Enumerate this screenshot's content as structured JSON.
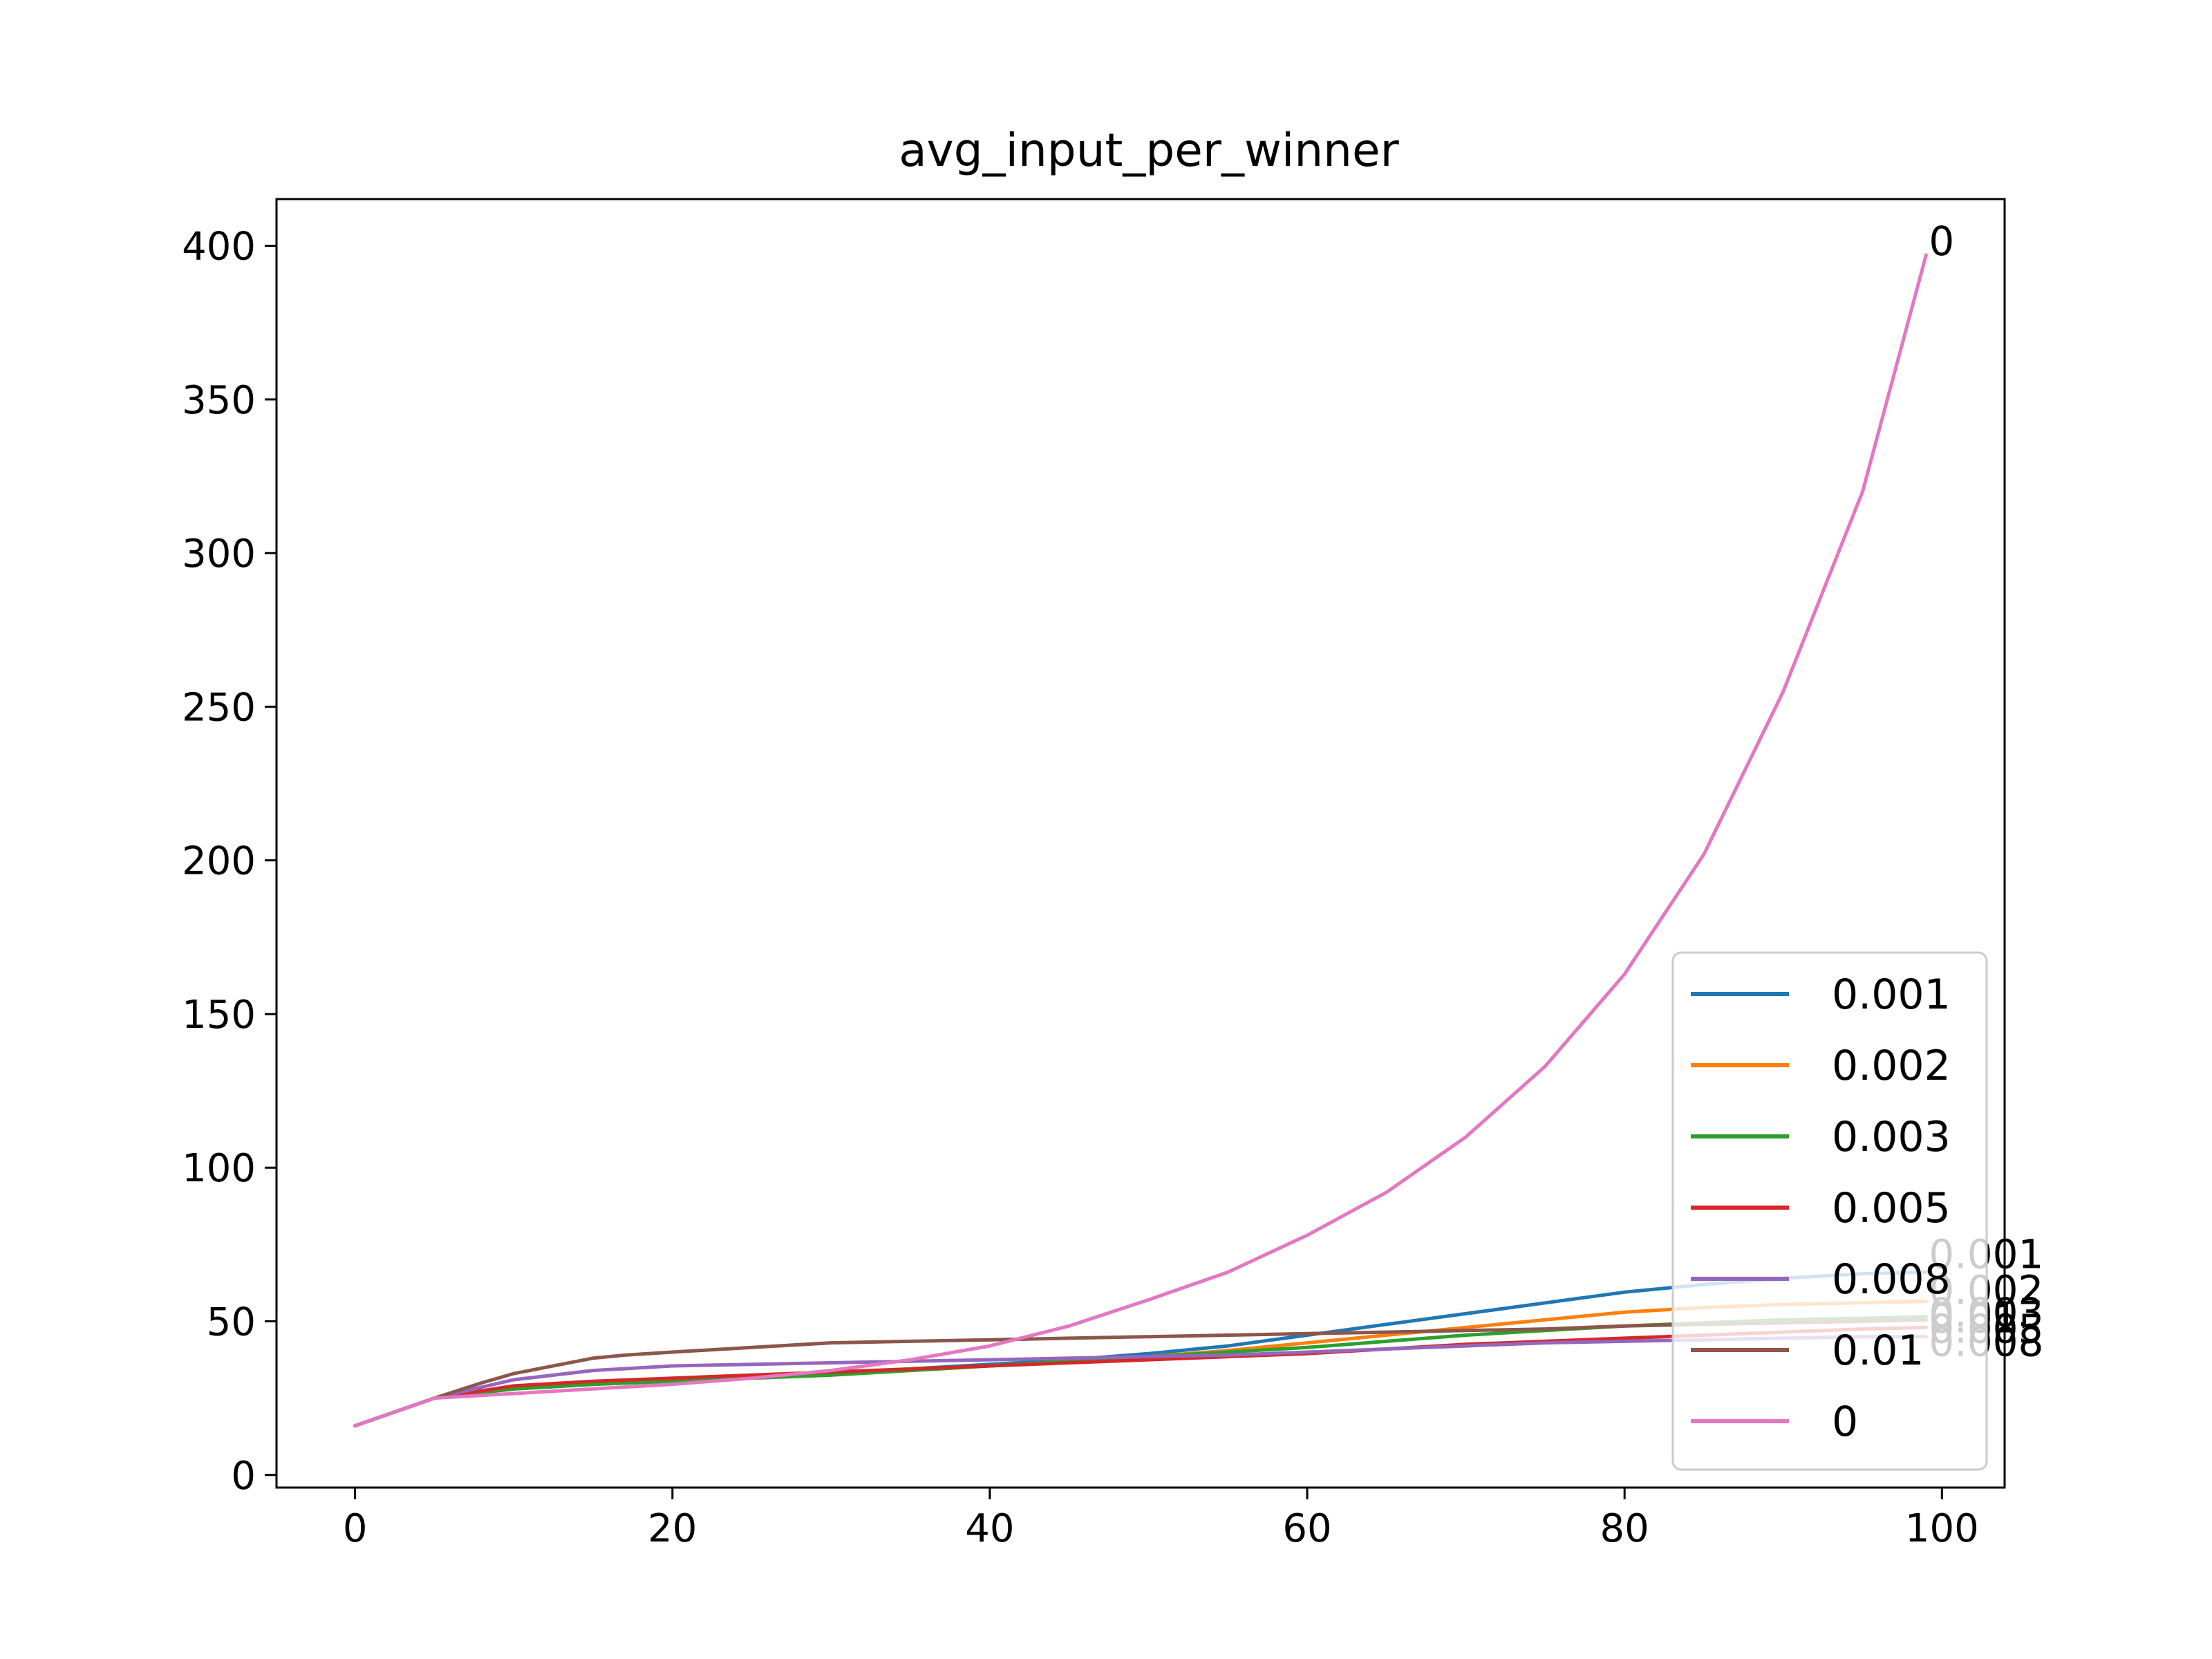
{
  "chart_data": {
    "type": "line",
    "title": "avg_input_per_winner",
    "xlabel": "",
    "ylabel": "",
    "xlim": [
      -4.95,
      103.95
    ],
    "ylim": [
      -4.1,
      415.2
    ],
    "xticks": [
      0,
      20,
      40,
      60,
      80,
      100
    ],
    "yticks": [
      0,
      50,
      100,
      150,
      200,
      250,
      300,
      350,
      400
    ],
    "grid": false,
    "legend_position": "lower-right",
    "series": [
      {
        "name": "0.001",
        "color": "#1f77b4",
        "x": [
          0,
          5,
          10,
          15,
          20,
          25,
          30,
          35,
          40,
          45,
          50,
          55,
          60,
          65,
          70,
          75,
          80,
          85,
          90,
          95,
          99
        ],
        "y": [
          16,
          25,
          28,
          29.5,
          30.5,
          32,
          33,
          34.5,
          36,
          37.5,
          39.5,
          42,
          45.5,
          49,
          52.5,
          56,
          59.5,
          62,
          64,
          65.5,
          66
        ]
      },
      {
        "name": "0.002",
        "color": "#ff7f0e",
        "x": [
          0,
          5,
          10,
          15,
          20,
          25,
          30,
          35,
          40,
          45,
          50,
          55,
          60,
          65,
          70,
          75,
          80,
          85,
          90,
          95,
          99
        ],
        "y": [
          16,
          25,
          28,
          29.5,
          30.5,
          31.5,
          32.5,
          34,
          35.5,
          37,
          38.5,
          40.5,
          43,
          45.5,
          48,
          50.5,
          53,
          54.5,
          55.5,
          56,
          56.5
        ]
      },
      {
        "name": "0.003",
        "color": "#2ca02c",
        "x": [
          0,
          5,
          10,
          15,
          20,
          25,
          30,
          35,
          40,
          45,
          50,
          55,
          60,
          65,
          70,
          75,
          80,
          85,
          90,
          95,
          99
        ],
        "y": [
          16,
          25,
          28,
          29.5,
          30.5,
          31.5,
          32.5,
          34,
          35.5,
          37,
          38.5,
          40,
          41.5,
          43.5,
          45.5,
          47,
          48.5,
          49.5,
          50.5,
          51,
          51.5
        ]
      },
      {
        "name": "0.005",
        "color": "#d62728",
        "x": [
          0,
          5,
          10,
          15,
          20,
          25,
          30,
          35,
          40,
          45,
          50,
          55,
          60,
          65,
          70,
          75,
          80,
          85,
          90,
          95,
          99
        ],
        "y": [
          16,
          25,
          29,
          30.5,
          31.5,
          32.5,
          33.5,
          34.5,
          35.5,
          36.5,
          37.5,
          38.5,
          39.5,
          41,
          42.5,
          43.5,
          44.5,
          45.5,
          46.5,
          47.5,
          48
        ]
      },
      {
        "name": "0.008",
        "color": "#9467bd",
        "x": [
          0,
          5,
          10,
          15,
          20,
          25,
          30,
          35,
          40,
          45,
          50,
          55,
          60,
          65,
          70,
          75,
          80,
          85,
          90,
          95,
          99
        ],
        "y": [
          16,
          25,
          31,
          34,
          35.5,
          36,
          36.5,
          37,
          37.5,
          38,
          38.5,
          39,
          40,
          41,
          42,
          43,
          43.5,
          44,
          44.5,
          45,
          45
        ]
      },
      {
        "name": "0.01",
        "color": "#8c564b",
        "x": [
          0,
          5,
          8,
          10,
          13,
          15,
          17,
          20,
          25,
          30,
          35,
          40,
          45,
          50,
          55,
          60,
          65,
          70,
          75,
          80,
          85,
          90,
          95,
          99
        ],
        "y": [
          16,
          25,
          30,
          33,
          36,
          38,
          39,
          40,
          41.5,
          43,
          43.5,
          44,
          44.5,
          45,
          45.5,
          46,
          46.5,
          47,
          47.5,
          48.5,
          49,
          49.5,
          50,
          50.5
        ]
      },
      {
        "name": "0",
        "color": "#e377c2",
        "x": [
          0,
          5,
          10,
          15,
          20,
          25,
          30,
          35,
          40,
          45,
          50,
          55,
          60,
          65,
          70,
          75,
          80,
          85,
          90,
          95,
          99
        ],
        "y": [
          16,
          25,
          26.5,
          28,
          29.5,
          31.5,
          34,
          37.5,
          42,
          48.5,
          57,
          66,
          78,
          92,
          110,
          133,
          163,
          202,
          255,
          320,
          397
        ]
      }
    ]
  }
}
